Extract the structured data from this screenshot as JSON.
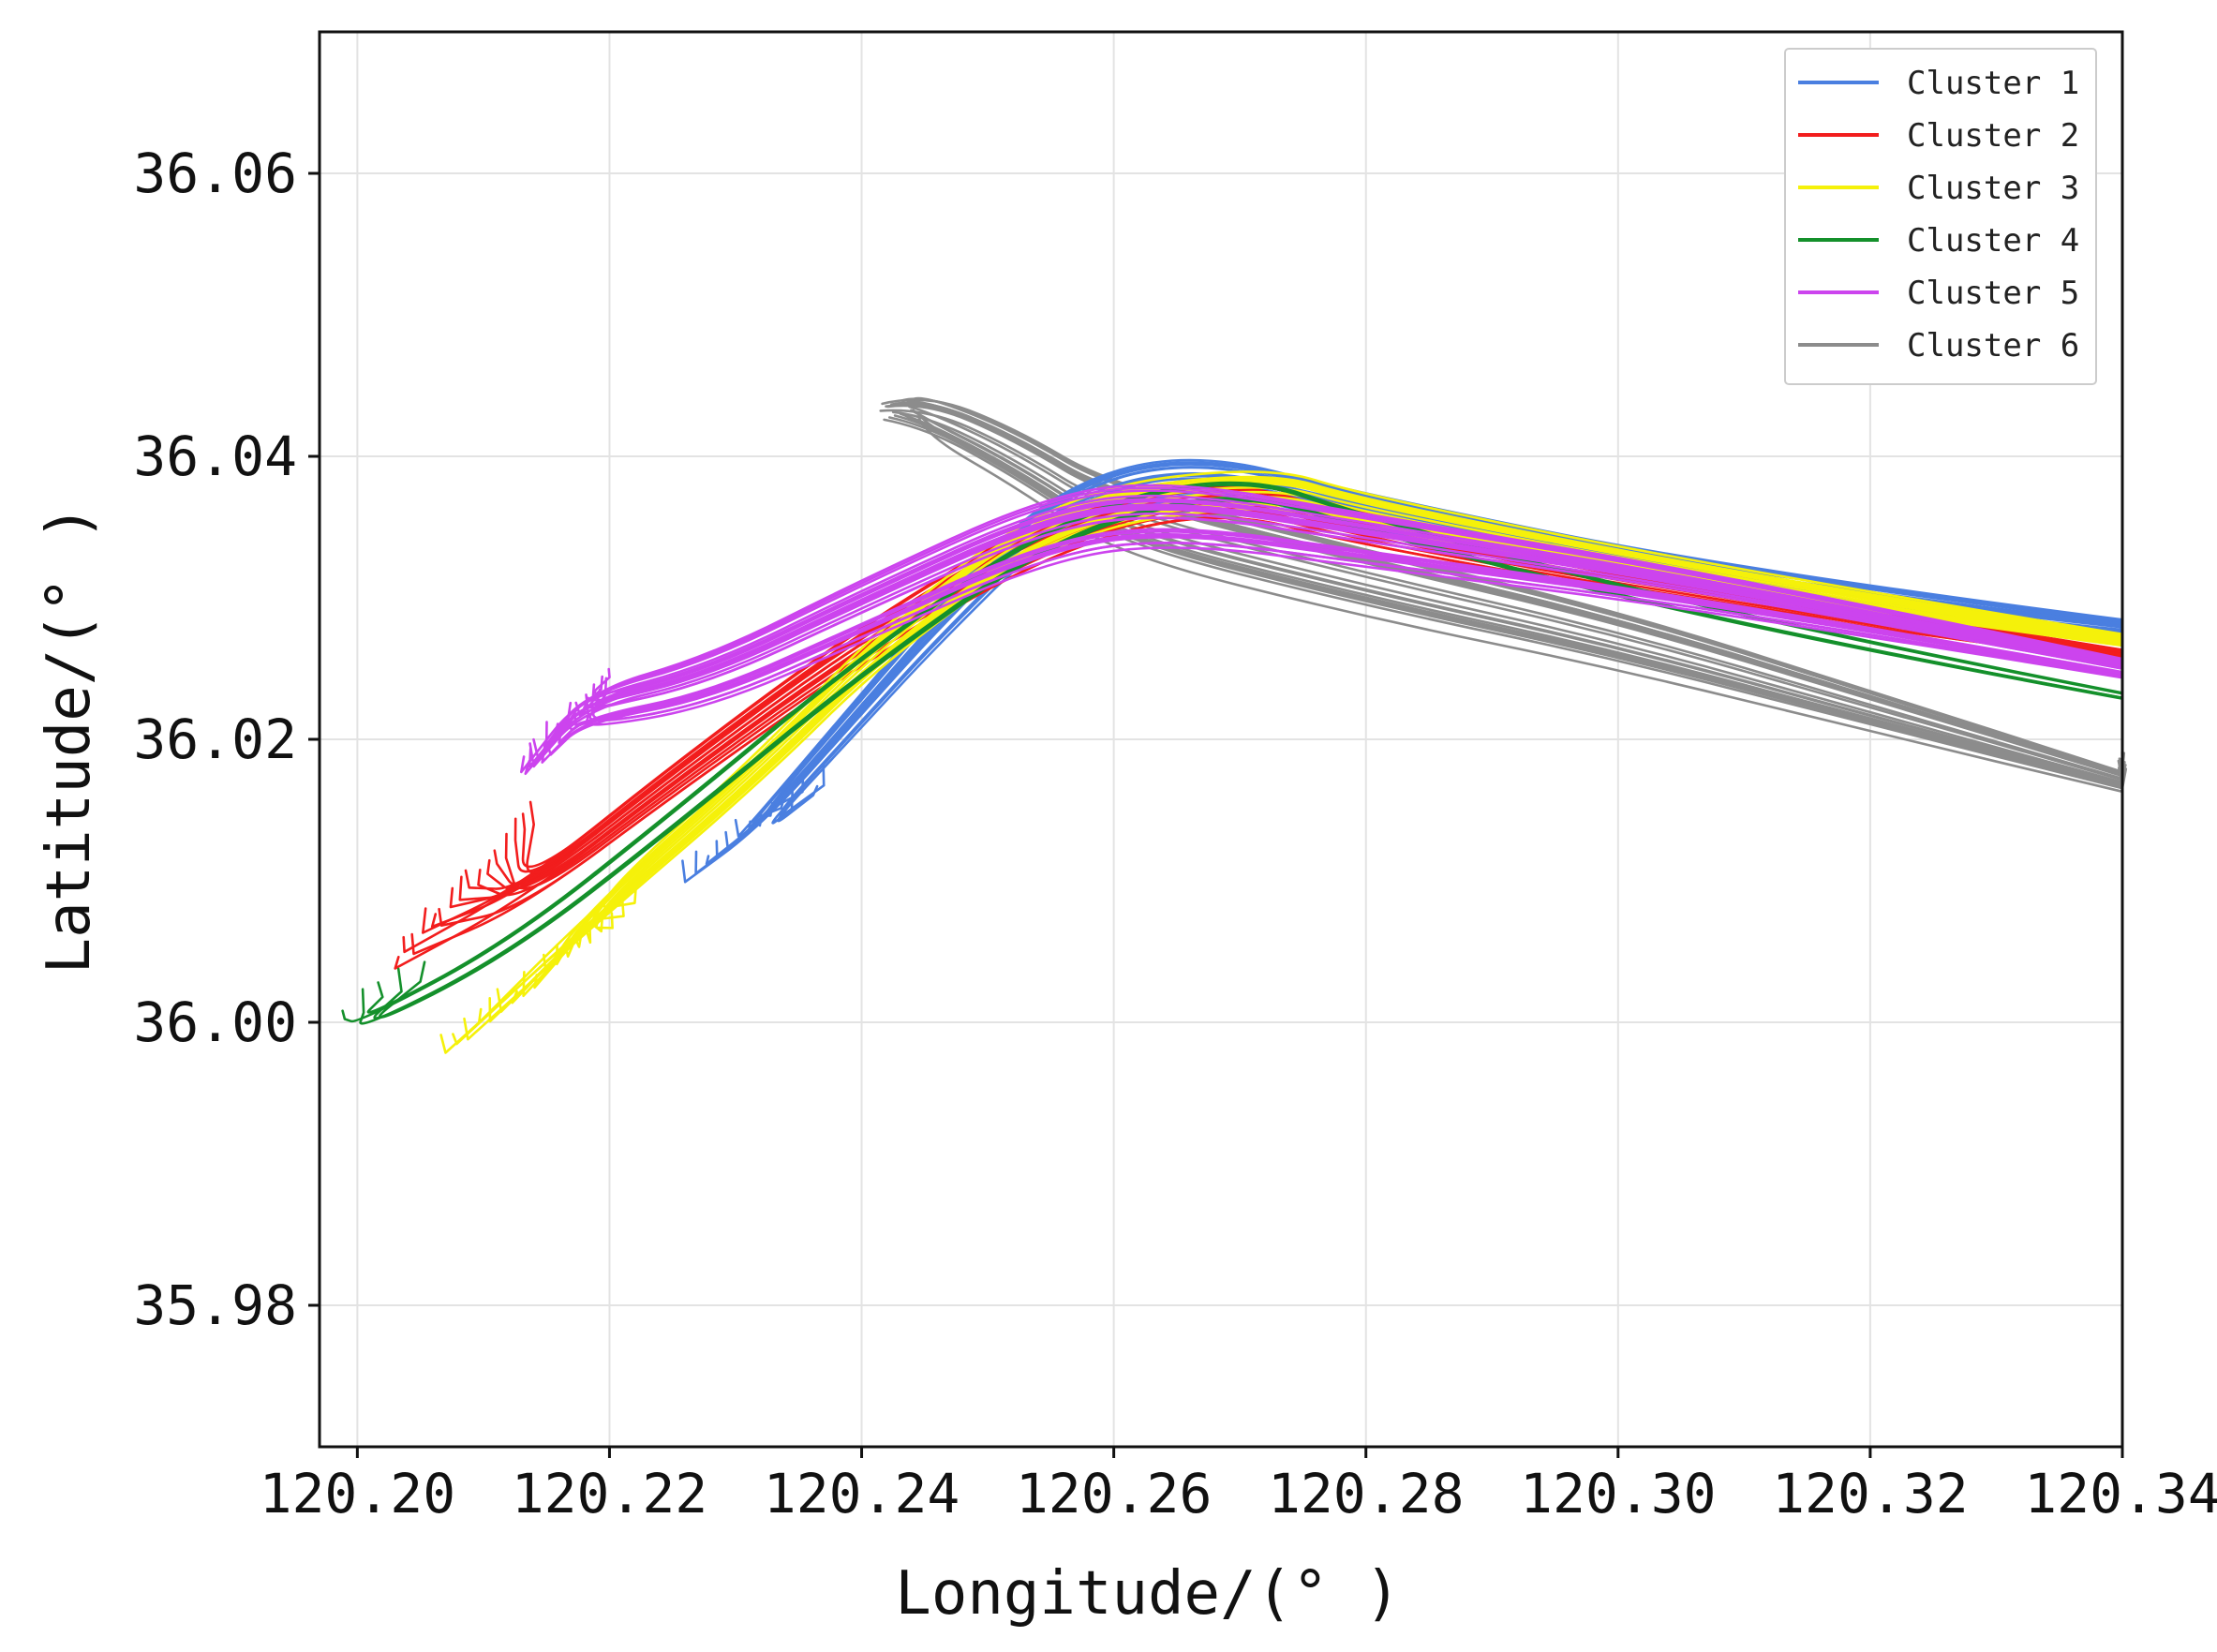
{
  "chart_data": {
    "type": "line",
    "xlabel": "Longitude/(° )",
    "ylabel": "Latitude/(° )",
    "xlim": [
      120.197,
      120.34
    ],
    "ylim": [
      35.97,
      36.07
    ],
    "xticks": [
      120.2,
      120.22,
      120.24,
      120.26,
      120.28,
      120.3,
      120.32,
      120.34
    ],
    "xtick_labels": [
      "120.20",
      "120.22",
      "120.24",
      "120.26",
      "120.28",
      "120.30",
      "120.32",
      "120.34"
    ],
    "yticks": [
      35.98,
      36.0,
      36.02,
      36.04,
      36.06
    ],
    "ytick_labels": [
      "35.98",
      "36.00",
      "36.02",
      "36.04",
      "36.06"
    ],
    "grid": true,
    "legend_position": "upper-right",
    "series": [
      {
        "name": "Cluster 1",
        "color": "#4a7fe0",
        "fan_count": 14,
        "spread": 0.0025,
        "points": [
          [
            120.34,
            36.028
          ],
          [
            120.31,
            36.031
          ],
          [
            120.28,
            36.036
          ],
          [
            120.266,
            36.039
          ],
          [
            120.255,
            36.036
          ],
          [
            120.246,
            36.028
          ],
          [
            120.24,
            36.022
          ],
          [
            120.232,
            36.014
          ],
          [
            120.225,
            36.01
          ]
        ],
        "fan_start": [
          120.226,
          36.01
        ],
        "fan_end": [
          120.237,
          36.017
        ]
      },
      {
        "name": "Cluster 2",
        "color": "#f21d1d",
        "fan_count": 16,
        "spread": 0.0025,
        "points": [
          [
            120.34,
            36.026
          ],
          [
            120.31,
            36.03
          ],
          [
            120.28,
            36.035
          ],
          [
            120.268,
            36.038
          ],
          [
            120.255,
            36.035
          ],
          [
            120.24,
            36.027
          ],
          [
            120.226,
            36.018
          ],
          [
            120.213,
            36.009
          ],
          [
            120.202,
            36.003
          ]
        ],
        "fan_start": [
          120.203,
          36.004
        ],
        "fan_end": [
          120.214,
          36.014
        ]
      },
      {
        "name": "Cluster 3",
        "color": "#f5f10a",
        "fan_count": 18,
        "spread": 0.0025,
        "points": [
          [
            120.34,
            36.027
          ],
          [
            120.31,
            36.031
          ],
          [
            120.28,
            36.036
          ],
          [
            120.272,
            36.038
          ],
          [
            120.256,
            36.036
          ],
          [
            120.242,
            36.027
          ],
          [
            120.232,
            36.018
          ],
          [
            120.218,
            36.007
          ],
          [
            120.207,
            35.998
          ]
        ],
        "fan_start": [
          120.207,
          35.998
        ],
        "fan_end": [
          120.222,
          36.008
        ]
      },
      {
        "name": "Cluster 4",
        "color": "#14902b",
        "fan_count": 5,
        "spread": 0.0015,
        "points": [
          [
            120.34,
            36.023
          ],
          [
            120.31,
            36.028
          ],
          [
            120.28,
            36.035
          ],
          [
            120.27,
            36.038
          ],
          [
            120.256,
            36.035
          ],
          [
            120.24,
            36.025
          ],
          [
            120.225,
            36.014
          ],
          [
            120.212,
            36.005
          ],
          [
            120.2,
            35.9995
          ],
          [
            120.197,
            36.0005
          ]
        ],
        "fan_start": [
          120.199,
          36.0
        ],
        "fan_end": [
          120.205,
          36.003
        ]
      },
      {
        "name": "Cluster 5",
        "color": "#cc44ee",
        "fan_count": 22,
        "spread": 0.0035,
        "points": [
          [
            120.34,
            36.025
          ],
          [
            120.31,
            36.03
          ],
          [
            120.28,
            36.034
          ],
          [
            120.265,
            36.036
          ],
          [
            120.255,
            36.035
          ],
          [
            120.24,
            36.029
          ],
          [
            120.228,
            36.024
          ],
          [
            120.218,
            36.022
          ],
          [
            120.214,
            36.02
          ]
        ],
        "fan_start": [
          120.213,
          36.017
        ],
        "fan_end": [
          120.22,
          36.024
        ]
      },
      {
        "name": "Cluster 6",
        "color": "#8c8c8c",
        "fan_count": 22,
        "spread": 0.0035,
        "points": [
          [
            120.2415,
            36.043
          ],
          [
            120.245,
            36.043
          ],
          [
            120.252,
            36.04
          ],
          [
            120.26,
            36.0355
          ],
          [
            120.28,
            36.031
          ],
          [
            120.3,
            36.027
          ],
          [
            120.32,
            36.022
          ],
          [
            120.34,
            36.017
          ]
        ],
        "fan_start": [
          120.2415,
          36.043
        ],
        "fan_end": [
          120.2445,
          36.0435
        ]
      }
    ]
  }
}
